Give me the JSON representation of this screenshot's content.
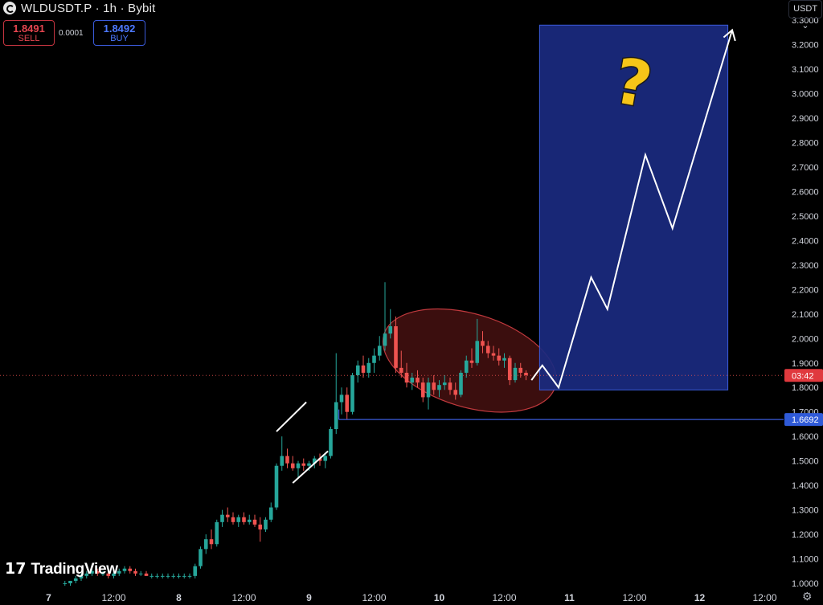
{
  "header": {
    "title": "WLDUSDT.P · 1h · Bybit",
    "sell_price": "1.8491",
    "sell_label": "SELL",
    "spread": "0.0001",
    "buy_price": "1.8492",
    "buy_label": "BUY",
    "currency": "USDT"
  },
  "watermark": "TradingView",
  "colors": {
    "background": "#000000",
    "up_candle": "#26a69a",
    "down_candle": "#ef5350",
    "projection_box": "#1a2a80",
    "ellipse": "#6b1a1a",
    "support_line": "#3a5ad9",
    "question_mark": "#f5c518"
  },
  "chart_data": {
    "type": "candlestick",
    "symbol": "WLDUSDT.P",
    "interval": "1h",
    "exchange": "Bybit",
    "ylim": [
      1.0,
      3.3
    ],
    "y_ticks": [
      "1.0000",
      "1.1000",
      "1.2000",
      "1.3000",
      "1.4000",
      "1.5000",
      "1.6000",
      "1.7000",
      "1.8000",
      "1.9000",
      "2.0000",
      "2.1000",
      "2.2000",
      "2.3000",
      "2.4000",
      "2.5000",
      "2.6000",
      "2.7000",
      "2.8000",
      "2.9000",
      "3.0000",
      "3.1000",
      "3.2000",
      "3.3000"
    ],
    "x_ticks": [
      "7",
      "12:00",
      "8",
      "12:00",
      "9",
      "12:00",
      "10",
      "12:00",
      "11",
      "12:00",
      "12",
      "12:00"
    ],
    "x_tick_hours": [
      0,
      12,
      24,
      36,
      48,
      60,
      72,
      84,
      96,
      108,
      120,
      132
    ],
    "current_price_label": "03:42",
    "current_price": 1.849,
    "support_label": "1.6692",
    "support_price": 1.6692,
    "candles": [
      [
        3,
        1.0,
        1.01,
        0.99,
        1.0
      ],
      [
        4,
        1.0,
        1.01,
        0.99,
        1.01
      ],
      [
        5,
        1.01,
        1.03,
        1.0,
        1.02
      ],
      [
        6,
        1.02,
        1.04,
        1.01,
        1.03
      ],
      [
        7,
        1.03,
        1.05,
        1.02,
        1.04
      ],
      [
        8,
        1.04,
        1.06,
        1.03,
        1.05
      ],
      [
        9,
        1.05,
        1.06,
        1.03,
        1.04
      ],
      [
        10,
        1.04,
        1.05,
        1.03,
        1.04
      ],
      [
        11,
        1.04,
        1.05,
        1.02,
        1.03
      ],
      [
        12,
        1.03,
        1.05,
        1.02,
        1.04
      ],
      [
        13,
        1.04,
        1.06,
        1.03,
        1.05
      ],
      [
        14,
        1.05,
        1.07,
        1.04,
        1.06
      ],
      [
        15,
        1.06,
        1.07,
        1.04,
        1.05
      ],
      [
        16,
        1.05,
        1.06,
        1.03,
        1.04
      ],
      [
        17,
        1.04,
        1.05,
        1.03,
        1.04
      ],
      [
        18,
        1.04,
        1.05,
        1.03,
        1.03
      ],
      [
        19,
        1.03,
        1.04,
        1.02,
        1.03
      ],
      [
        20,
        1.03,
        1.04,
        1.02,
        1.03
      ],
      [
        21,
        1.03,
        1.04,
        1.02,
        1.03
      ],
      [
        22,
        1.03,
        1.04,
        1.02,
        1.03
      ],
      [
        23,
        1.03,
        1.04,
        1.02,
        1.03
      ],
      [
        24,
        1.03,
        1.04,
        1.02,
        1.03
      ],
      [
        25,
        1.03,
        1.04,
        1.02,
        1.03
      ],
      [
        26,
        1.03,
        1.04,
        1.02,
        1.03
      ],
      [
        27,
        1.03,
        1.08,
        1.02,
        1.07
      ],
      [
        28,
        1.07,
        1.15,
        1.06,
        1.14
      ],
      [
        29,
        1.14,
        1.2,
        1.12,
        1.18
      ],
      [
        30,
        1.18,
        1.22,
        1.14,
        1.16
      ],
      [
        31,
        1.16,
        1.26,
        1.15,
        1.25
      ],
      [
        32,
        1.25,
        1.3,
        1.23,
        1.28
      ],
      [
        33,
        1.28,
        1.31,
        1.25,
        1.27
      ],
      [
        34,
        1.27,
        1.29,
        1.24,
        1.25
      ],
      [
        35,
        1.25,
        1.28,
        1.23,
        1.27
      ],
      [
        36,
        1.27,
        1.29,
        1.24,
        1.25
      ],
      [
        37,
        1.25,
        1.28,
        1.24,
        1.26
      ],
      [
        38,
        1.26,
        1.28,
        1.23,
        1.24
      ],
      [
        39,
        1.24,
        1.27,
        1.17,
        1.22
      ],
      [
        40,
        1.22,
        1.27,
        1.21,
        1.26
      ],
      [
        41,
        1.26,
        1.33,
        1.25,
        1.31
      ],
      [
        42,
        1.31,
        1.49,
        1.3,
        1.48
      ],
      [
        43,
        1.48,
        1.6,
        1.46,
        1.52
      ],
      [
        44,
        1.52,
        1.55,
        1.47,
        1.49
      ],
      [
        45,
        1.49,
        1.52,
        1.46,
        1.47
      ],
      [
        46,
        1.47,
        1.5,
        1.43,
        1.49
      ],
      [
        47,
        1.49,
        1.51,
        1.46,
        1.48
      ],
      [
        48,
        1.48,
        1.5,
        1.46,
        1.49
      ],
      [
        49,
        1.49,
        1.52,
        1.47,
        1.51
      ],
      [
        50,
        1.51,
        1.53,
        1.48,
        1.5
      ],
      [
        51,
        1.5,
        1.53,
        1.47,
        1.52
      ],
      [
        52,
        1.52,
        1.64,
        1.51,
        1.63
      ],
      [
        53,
        1.63,
        1.94,
        1.61,
        1.74
      ],
      [
        54,
        1.74,
        1.8,
        1.69,
        1.77
      ],
      [
        55,
        1.77,
        1.8,
        1.67,
        1.7
      ],
      [
        56,
        1.7,
        1.86,
        1.69,
        1.85
      ],
      [
        57,
        1.85,
        1.91,
        1.82,
        1.89
      ],
      [
        58,
        1.89,
        1.93,
        1.84,
        1.86
      ],
      [
        59,
        1.86,
        1.92,
        1.84,
        1.9
      ],
      [
        60,
        1.9,
        1.96,
        1.86,
        1.93
      ],
      [
        61,
        1.93,
        2.01,
        1.91,
        1.97
      ],
      [
        62,
        1.97,
        2.23,
        1.95,
        2.02
      ],
      [
        63,
        2.02,
        2.12,
        2.0,
        2.05
      ],
      [
        64,
        2.05,
        2.09,
        1.86,
        1.88
      ],
      [
        65,
        1.88,
        1.95,
        1.84,
        1.86
      ],
      [
        66,
        1.86,
        1.9,
        1.8,
        1.82
      ],
      [
        67,
        1.82,
        1.86,
        1.79,
        1.84
      ],
      [
        68,
        1.84,
        1.87,
        1.8,
        1.82
      ],
      [
        69,
        1.82,
        1.84,
        1.74,
        1.76
      ],
      [
        70,
        1.76,
        1.84,
        1.71,
        1.82
      ],
      [
        71,
        1.82,
        1.85,
        1.77,
        1.79
      ],
      [
        72,
        1.79,
        1.83,
        1.76,
        1.81
      ],
      [
        73,
        1.81,
        1.85,
        1.79,
        1.82
      ],
      [
        74,
        1.82,
        1.84,
        1.77,
        1.79
      ],
      [
        75,
        1.79,
        1.82,
        1.75,
        1.77
      ],
      [
        76,
        1.77,
        1.87,
        1.76,
        1.86
      ],
      [
        77,
        1.86,
        1.93,
        1.84,
        1.91
      ],
      [
        78,
        1.91,
        1.96,
        1.88,
        1.9
      ],
      [
        79,
        1.9,
        2.08,
        1.89,
        1.99
      ],
      [
        80,
        1.99,
        2.03,
        1.94,
        1.97
      ],
      [
        81,
        1.97,
        1.99,
        1.92,
        1.94
      ],
      [
        82,
        1.94,
        1.97,
        1.91,
        1.93
      ],
      [
        83,
        1.93,
        1.96,
        1.89,
        1.91
      ],
      [
        84,
        1.91,
        1.94,
        1.88,
        1.92
      ],
      [
        85,
        1.92,
        1.93,
        1.81,
        1.83
      ],
      [
        86,
        1.83,
        1.9,
        1.82,
        1.88
      ],
      [
        87,
        1.88,
        1.9,
        1.84,
        1.86
      ],
      [
        88,
        1.86,
        1.87,
        1.83,
        1.85
      ]
    ],
    "projection_path": [
      [
        89,
        1.83
      ],
      [
        91,
        1.89
      ],
      [
        94,
        1.8
      ],
      [
        100,
        2.25
      ],
      [
        103,
        2.12
      ],
      [
        110,
        2.75
      ],
      [
        115,
        2.45
      ],
      [
        126,
        3.26
      ]
    ],
    "projection_box": {
      "x0": 90.5,
      "x1": 125.2,
      "y0": 1.79,
      "y1": 3.28
    },
    "ellipse": {
      "cx": 77.6,
      "cy": 1.91,
      "rx": 16.5,
      "ry_price": 0.19,
      "rotation_deg": 17
    },
    "channel_lines": [
      [
        [
          42,
          1.62
        ],
        [
          47.5,
          1.74
        ]
      ],
      [
        [
          45,
          1.41
        ],
        [
          51.5,
          1.54
        ]
      ]
    ],
    "annotation": "?"
  }
}
